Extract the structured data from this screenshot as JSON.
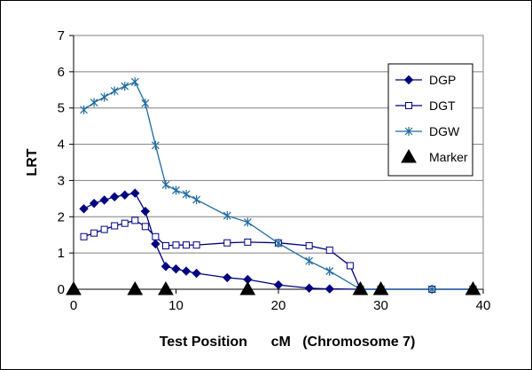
{
  "chart_data": {
    "type": "line",
    "xlabel": "Test Position      cM   (Chromosome 7)",
    "ylabel": "LRT",
    "xlim": [
      0,
      40
    ],
    "ylim": [
      0,
      7
    ],
    "xticks": [
      0,
      10,
      20,
      30,
      40
    ],
    "yticks": [
      0,
      1,
      2,
      3,
      4,
      5,
      6,
      7
    ],
    "grid": "horizontal",
    "legend_position": "right",
    "series": [
      {
        "name": "DGP",
        "color": "#000080",
        "marker": "diamond",
        "x": [
          1,
          2,
          3,
          4,
          5,
          6,
          7,
          8,
          9,
          10,
          11,
          12,
          15,
          17,
          20,
          23,
          25,
          28,
          30,
          35,
          39
        ],
        "y": [
          2.22,
          2.37,
          2.46,
          2.55,
          2.6,
          2.65,
          2.15,
          1.25,
          0.63,
          0.56,
          0.5,
          0.44,
          0.32,
          0.27,
          0.12,
          0.03,
          0.01,
          0.0,
          0.0,
          0.0,
          0.0
        ]
      },
      {
        "name": "DGT",
        "color": "#000080",
        "marker": "square",
        "x": [
          1,
          2,
          3,
          4,
          5,
          6,
          7,
          8,
          9,
          10,
          11,
          12,
          15,
          17,
          20,
          23,
          25,
          27,
          28,
          30,
          35,
          39
        ],
        "y": [
          1.45,
          1.55,
          1.65,
          1.75,
          1.82,
          1.9,
          1.73,
          1.45,
          1.2,
          1.22,
          1.22,
          1.22,
          1.28,
          1.3,
          1.28,
          1.2,
          1.08,
          0.65,
          0.0,
          0.0,
          0.0,
          0.0
        ]
      },
      {
        "name": "DGW",
        "color": "#1f6aa0",
        "marker": "star",
        "x": [
          1,
          2,
          3,
          4,
          5,
          6,
          7,
          8,
          9,
          10,
          11,
          12,
          15,
          17,
          20,
          23,
          25,
          28,
          30,
          35,
          39
        ],
        "y": [
          4.95,
          5.15,
          5.3,
          5.47,
          5.6,
          5.72,
          5.13,
          3.97,
          2.88,
          2.73,
          2.62,
          2.47,
          2.03,
          1.85,
          1.27,
          0.78,
          0.5,
          0.0,
          0.0,
          0.0,
          0.0
        ]
      },
      {
        "name": "Marker",
        "color": "#000000",
        "marker": "triangle",
        "x": [
          0,
          6,
          9,
          17,
          28,
          30,
          39
        ],
        "y": [
          0,
          0,
          0,
          0,
          0,
          0,
          0
        ]
      }
    ]
  }
}
